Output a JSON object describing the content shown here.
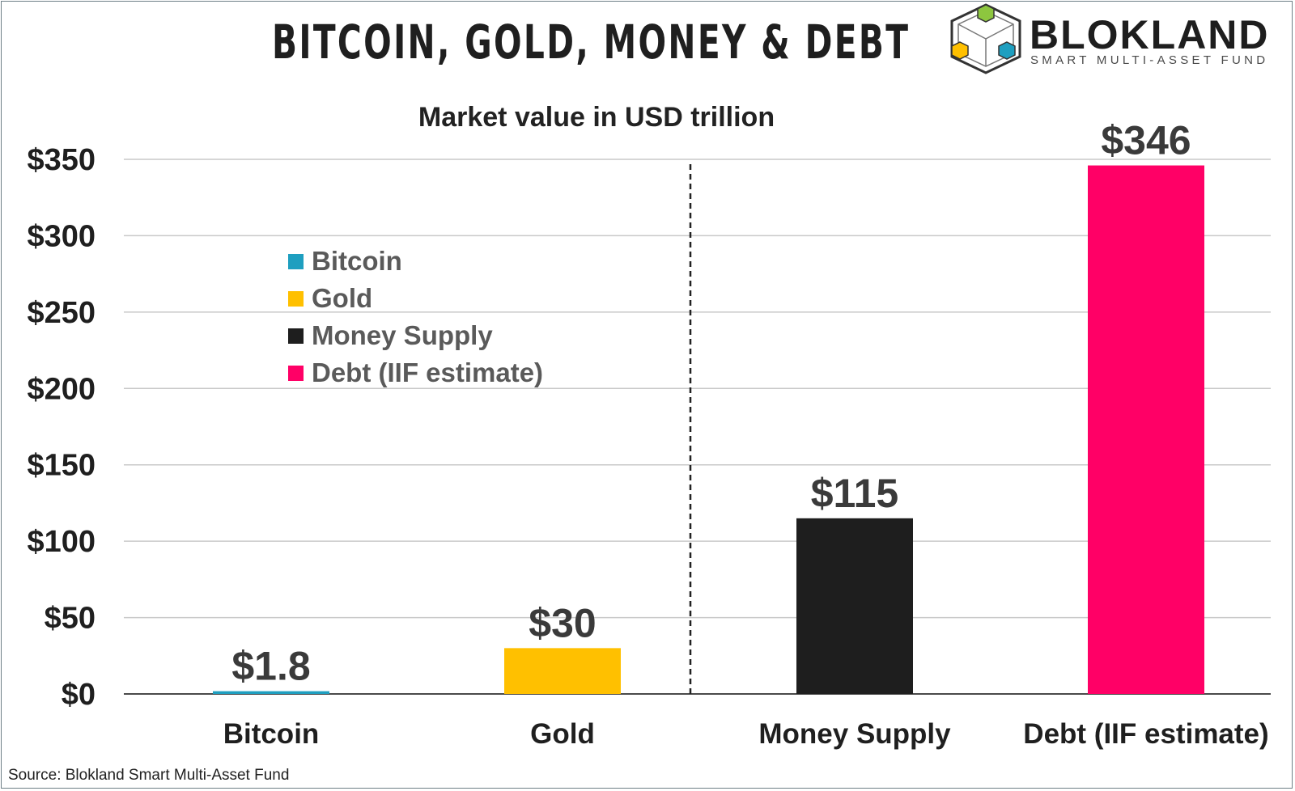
{
  "header": {
    "title": "BITCOIN, GOLD, MONEY & DEBT",
    "brand": "BLOKLAND",
    "brand_sub": "SMART MULTI-ASSET FUND"
  },
  "subtitle": "Market value in USD trillion",
  "source": "Source: Blokland Smart Multi-Asset Fund",
  "colors": {
    "Bitcoin": "#1e9fc0",
    "Gold": "#ffc000",
    "Money Supply": "#1e1e1e",
    "Debt (IIF estimate)": "#ff0066"
  },
  "legend": [
    {
      "label": "Bitcoin",
      "color": "#1e9fc0"
    },
    {
      "label": "Gold",
      "color": "#ffc000"
    },
    {
      "label": "Money Supply",
      "color": "#1e1e1e"
    },
    {
      "label": "Debt (IIF estimate)",
      "color": "#ff0066"
    }
  ],
  "chart_data": {
    "type": "bar",
    "title": "BITCOIN, GOLD, MONEY & DEBT",
    "subtitle": "Market value in USD trillion",
    "categories": [
      "Bitcoin",
      "Gold",
      "Money Supply",
      "Debt (IIF estimate)"
    ],
    "values": [
      1.8,
      30,
      115,
      346
    ],
    "value_labels": [
      "$1.8",
      "$30",
      "$115",
      "$346"
    ],
    "ylim": [
      0,
      350
    ],
    "yticks": [
      0,
      50,
      100,
      150,
      200,
      250,
      300,
      350
    ],
    "ytick_labels": [
      "$0",
      "$50",
      "$100",
      "$150",
      "$200",
      "$250",
      "$300",
      "$350"
    ],
    "grid": true,
    "legend_position": "upper-left",
    "divider": "dashed vertical line between Gold and Money Supply"
  }
}
